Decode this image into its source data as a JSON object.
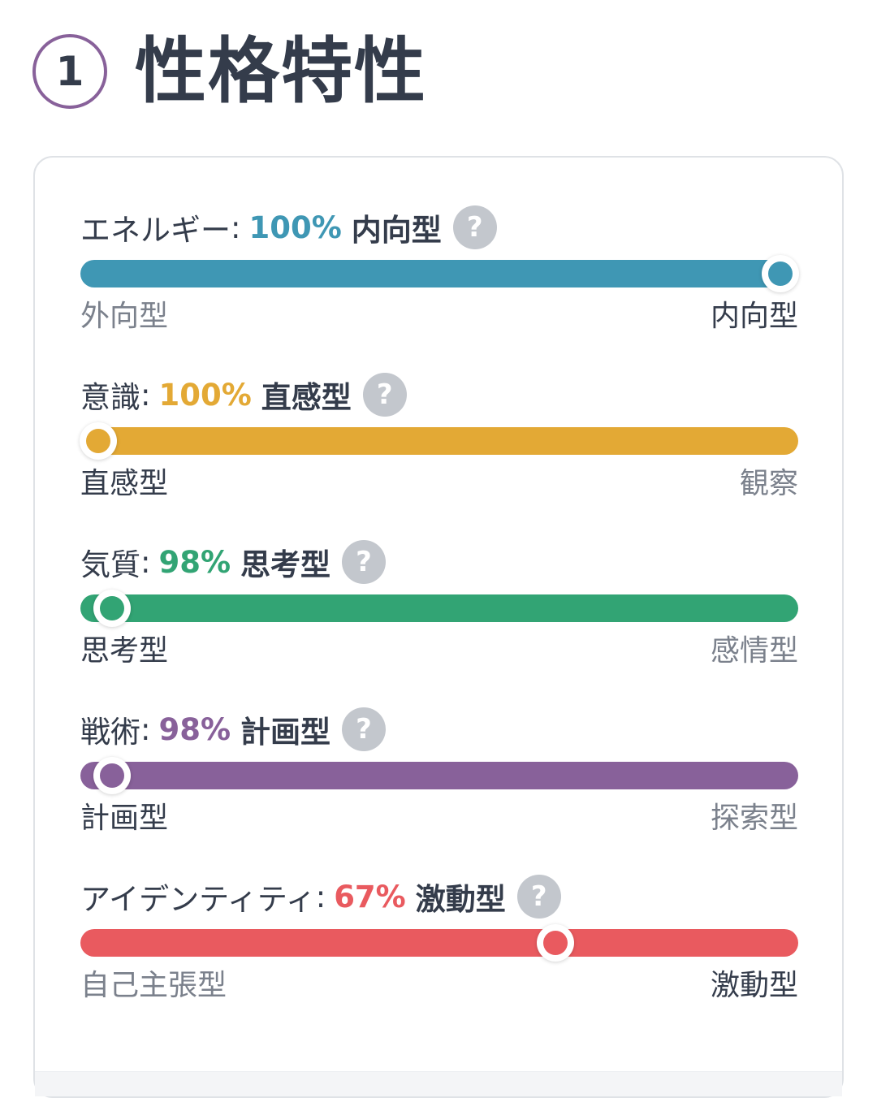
{
  "section": {
    "number": "1",
    "title": "性格特性"
  },
  "colors": {
    "energy": "#3f97b4",
    "mind": "#e3a935",
    "nature": "#32a474",
    "tactics": "#88619a",
    "identity": "#e95a5f"
  },
  "traits": [
    {
      "name": "エネルギー",
      "percent": "100%",
      "result": "内向型",
      "left_label": "外向型",
      "right_label": "内向型",
      "level_percent": 100,
      "active_side": "right",
      "color": "#3f97b4"
    },
    {
      "name": "意識",
      "percent": "100%",
      "result": "直感型",
      "left_label": "直感型",
      "right_label": "観察",
      "level_percent": 0,
      "active_side": "left",
      "color": "#e3a935"
    },
    {
      "name": "気質",
      "percent": "98%",
      "result": "思考型",
      "left_label": "思考型",
      "right_label": "感情型",
      "level_percent": 2,
      "active_side": "left",
      "color": "#32a474"
    },
    {
      "name": "戦術",
      "percent": "98%",
      "result": "計画型",
      "left_label": "計画型",
      "right_label": "探索型",
      "level_percent": 2,
      "active_side": "left",
      "color": "#88619a"
    },
    {
      "name": "アイデンティティ",
      "percent": "67%",
      "result": "激動型",
      "left_label": "自己主張型",
      "right_label": "激動型",
      "level_percent": 67,
      "active_side": "right",
      "color": "#e95a5f"
    }
  ],
  "help_icon": {
    "icon": "question-circle-icon",
    "glyph": "?"
  },
  "colon": ":"
}
